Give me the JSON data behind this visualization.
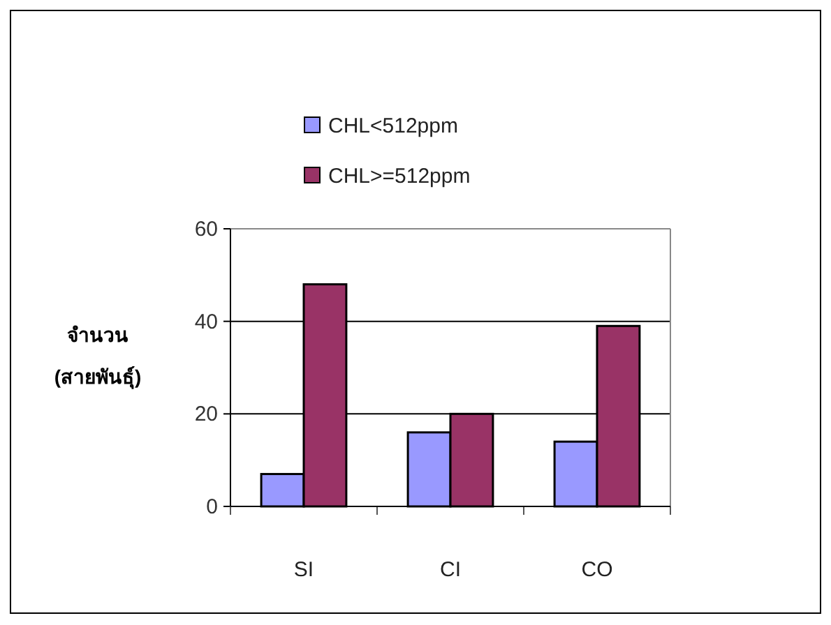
{
  "chart_data": {
    "type": "bar",
    "ylabel": "จำนวน (สายพันธุ์)",
    "categories": [
      "SI",
      "CI",
      "CO"
    ],
    "series": [
      {
        "name": "CHL<512ppm",
        "color": "#9999ff",
        "values": [
          7,
          16,
          14
        ]
      },
      {
        "name": "CHL>=512ppm",
        "color": "#993366",
        "values": [
          48,
          20,
          39
        ]
      }
    ],
    "ylim": [
      0,
      60
    ],
    "yticks": [
      0,
      20,
      40,
      60
    ],
    "grid": "y",
    "legend": "top"
  }
}
